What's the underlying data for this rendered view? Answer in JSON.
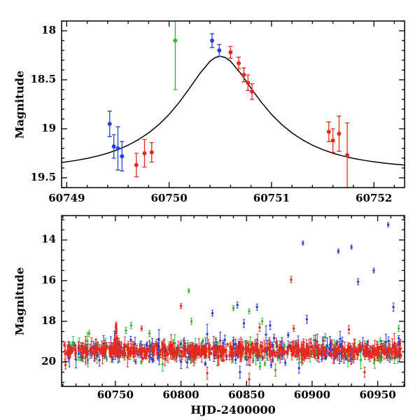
{
  "colors": {
    "red": "#e8291c",
    "green": "#2eb82e",
    "blue": "#2541d9",
    "curve": "#000000",
    "axis": "#000000",
    "text": "#000000",
    "background": "#ffffff"
  },
  "chart_data": [
    {
      "id": "top",
      "type": "scatter",
      "title": "",
      "xlabel": "",
      "ylabel": "Magnitude",
      "y_axis_inverted": true,
      "xlim": [
        60748.95,
        60752.3
      ],
      "ylim_top_to_bottom": [
        17.9,
        19.6
      ],
      "xticks": {
        "major": [
          60749,
          60750,
          60751,
          60752
        ],
        "minor_step": 0.2
      },
      "yticks": {
        "major": [
          18,
          18.5,
          19,
          19.5
        ],
        "minor_step": 0.1
      },
      "model_curve": {
        "name": "microlensing-fit-curve",
        "points": [
          [
            60748.9,
            19.35
          ],
          [
            60749.0,
            19.337
          ],
          [
            60749.1,
            19.321
          ],
          [
            60749.2,
            19.302
          ],
          [
            60749.3,
            19.278
          ],
          [
            60749.4,
            19.249
          ],
          [
            60749.5,
            19.212
          ],
          [
            60749.6,
            19.167
          ],
          [
            60749.7,
            19.111
          ],
          [
            60749.8,
            19.042
          ],
          [
            60749.9,
            18.957
          ],
          [
            60750.0,
            18.853
          ],
          [
            60750.1,
            18.728
          ],
          [
            60750.2,
            18.585
          ],
          [
            60750.3,
            18.436
          ],
          [
            60750.4,
            18.311
          ],
          [
            60750.45,
            18.273
          ],
          [
            60750.5,
            18.26
          ],
          [
            60750.55,
            18.273
          ],
          [
            60750.6,
            18.311
          ],
          [
            60750.7,
            18.436
          ],
          [
            60750.8,
            18.585
          ],
          [
            60750.9,
            18.728
          ],
          [
            60751.0,
            18.853
          ],
          [
            60751.1,
            18.957
          ],
          [
            60751.2,
            19.042
          ],
          [
            60751.3,
            19.111
          ],
          [
            60751.4,
            19.167
          ],
          [
            60751.5,
            19.212
          ],
          [
            60751.6,
            19.249
          ],
          [
            60751.7,
            19.278
          ],
          [
            60751.8,
            19.302
          ],
          [
            60751.9,
            19.321
          ],
          [
            60752.0,
            19.337
          ],
          [
            60752.1,
            19.35
          ],
          [
            60752.2,
            19.361
          ],
          [
            60752.3,
            19.37
          ]
        ]
      },
      "series": [
        {
          "name": "green-observatory",
          "color_key": "green",
          "points": [
            [
              60750.06,
              18.1,
              0.5
            ]
          ]
        },
        {
          "name": "blue-observatory",
          "color_key": "blue",
          "points": [
            [
              60749.42,
              18.95,
              0.13
            ],
            [
              60749.46,
              19.18,
              0.12
            ],
            [
              60749.5,
              19.2,
              0.22
            ],
            [
              60749.54,
              19.28,
              0.15
            ],
            [
              60750.42,
              18.1,
              0.07
            ],
            [
              60750.49,
              18.2,
              0.06
            ]
          ]
        },
        {
          "name": "red-observatory",
          "color_key": "red",
          "points": [
            [
              60749.68,
              19.37,
              0.12
            ],
            [
              60749.76,
              19.25,
              0.14
            ],
            [
              60749.83,
              19.24,
              0.1
            ],
            [
              60750.6,
              18.22,
              0.06
            ],
            [
              60750.68,
              18.33,
              0.06
            ],
            [
              60750.73,
              18.45,
              0.07
            ],
            [
              60750.77,
              18.53,
              0.08
            ],
            [
              60750.81,
              18.62,
              0.08
            ],
            [
              60751.56,
              19.03,
              0.1
            ],
            [
              60751.6,
              19.12,
              0.12
            ],
            [
              60751.66,
              19.05,
              0.18
            ],
            [
              60751.74,
              19.27,
              0.33
            ]
          ]
        }
      ]
    },
    {
      "id": "bottom",
      "type": "scatter",
      "title": "",
      "xlabel": "HJD-2400000",
      "ylabel": "Magnitude",
      "y_axis_inverted": true,
      "xlim": [
        60709,
        60970.5
      ],
      "ylim_top_to_bottom": [
        12.8,
        21.2
      ],
      "xticks": {
        "major": [
          60750,
          60800,
          60850,
          60900,
          60950
        ],
        "minor_step": 10
      },
      "yticks": {
        "major": [
          14,
          16,
          18,
          20
        ],
        "minor_step": 0.5
      },
      "dense_baseline": [
        {
          "color_key": "green",
          "n": 150,
          "t_range": [
            60713,
            60967
          ],
          "mag_mean": 19.5,
          "mag_sigma": 0.25,
          "err_min": 0.08,
          "err_max": 0.45,
          "seed": 23
        },
        {
          "color_key": "blue",
          "n": 240,
          "t_range": [
            60714,
            60968
          ],
          "mag_mean": 19.42,
          "mag_sigma": 0.26,
          "err_min": 0.07,
          "err_max": 0.5,
          "seed": 5
        },
        {
          "color_key": "red",
          "n": 620,
          "t_range": [
            60711,
            60968
          ],
          "mag_mean": 19.45,
          "mag_sigma": 0.15,
          "err_min": 0.06,
          "err_max": 0.5,
          "seed": 11
        }
      ],
      "series": [
        {
          "name": "green-outliers",
          "color_key": "green",
          "points": [
            [
              60730,
              18.6,
              0.15
            ],
            [
              60758,
              18.45,
              0.15
            ],
            [
              60762,
              18.2,
              0.15
            ],
            [
              60776,
              18.6,
              0.15
            ],
            [
              60806,
              16.5,
              0.1
            ],
            [
              60808,
              18.0,
              0.15
            ],
            [
              60840,
              17.35,
              0.12
            ],
            [
              60852,
              17.5,
              0.12
            ],
            [
              60862,
              18.0,
              0.15
            ],
            [
              60872,
              20.4,
              0.3
            ],
            [
              60966,
              18.35,
              0.15
            ]
          ]
        },
        {
          "name": "red-outliers",
          "color_key": "red",
          "points": [
            [
              60712,
              20.15,
              0.2
            ],
            [
              60749.3,
              19.05,
              0.12
            ],
            [
              60749.8,
              19.1,
              0.1
            ],
            [
              60750.0,
              18.85,
              0.1
            ],
            [
              60750.2,
              18.6,
              0.1
            ],
            [
              60750.4,
              18.3,
              0.1
            ],
            [
              60750.55,
              18.2,
              0.08
            ],
            [
              60750.6,
              18.15,
              0.1
            ],
            [
              60750.7,
              18.35,
              0.1
            ],
            [
              60750.9,
              18.5,
              0.1
            ],
            [
              60751.3,
              18.8,
              0.1
            ],
            [
              60751.7,
              19.0,
              0.12
            ],
            [
              60770,
              18.35,
              0.12
            ],
            [
              60800,
              17.25,
              0.12
            ],
            [
              60820,
              20.55,
              0.3
            ],
            [
              60852,
              20.85,
              0.3
            ],
            [
              60860,
              18.3,
              0.2
            ],
            [
              60884,
              15.95,
              0.15
            ],
            [
              60886,
              18.35,
              0.15
            ],
            [
              60928,
              18.4,
              0.2
            ],
            [
              60940,
              20.5,
              0.25
            ]
          ]
        },
        {
          "name": "blue-outliers",
          "color_key": "blue",
          "points": [
            [
              60824,
              17.6,
              0.15
            ],
            [
              60843,
              17.2,
              0.15
            ],
            [
              60845,
              20.5,
              0.3
            ],
            [
              60848,
              18.1,
              0.2
            ],
            [
              60858,
              17.3,
              0.15
            ],
            [
              60868,
              18.2,
              0.2
            ],
            [
              60890,
              20.3,
              0.25
            ],
            [
              60893,
              14.15,
              0.1
            ],
            [
              60896,
              17.9,
              0.2
            ],
            [
              60920,
              14.55,
              0.1
            ],
            [
              60930,
              14.35,
              0.1
            ],
            [
              60935,
              16.05,
              0.15
            ],
            [
              60947,
              15.5,
              0.12
            ],
            [
              60958,
              13.25,
              0.1
            ],
            [
              60962,
              17.3,
              0.2
            ]
          ]
        }
      ]
    }
  ]
}
